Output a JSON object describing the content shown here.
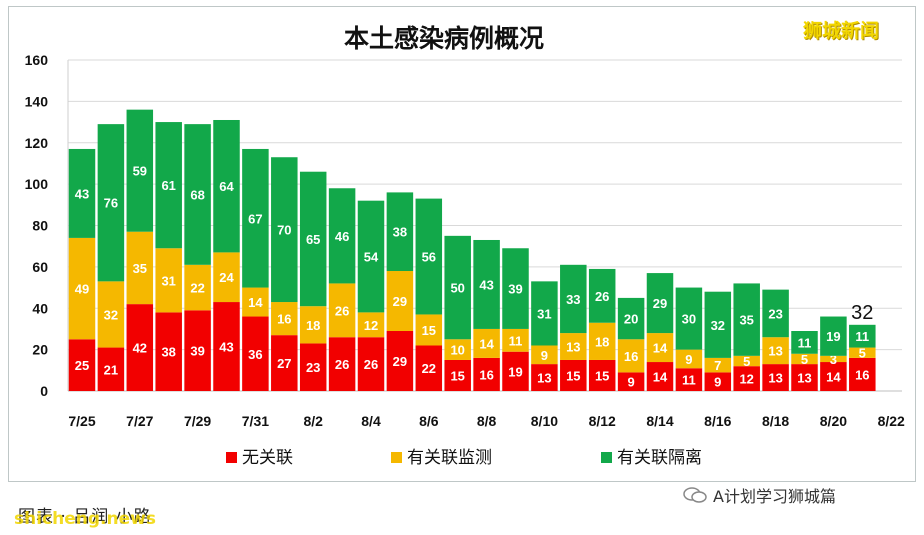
{
  "watermark": "狮城新闻",
  "footer": {
    "credit": "图表 · 吕润 小路",
    "source": "shicheng.news",
    "wechat": "A计划学习狮城篇"
  },
  "colors": {
    "red": "#f20000",
    "yellow": "#f5b800",
    "green": "#12a84a",
    "grid": "#d9d9d9"
  },
  "chart_data": {
    "type": "bar",
    "stacked": true,
    "title": "本土感染病例概况",
    "ylim": [
      0,
      160
    ],
    "yticks": [
      0,
      20,
      40,
      60,
      80,
      100,
      120,
      140,
      160
    ],
    "grid": true,
    "legend_position": "bottom",
    "categories": [
      "7/25",
      "7/26",
      "7/27",
      "7/28",
      "7/29",
      "7/30",
      "7/31",
      "8/1",
      "8/2",
      "8/3",
      "8/4",
      "8/5",
      "8/6",
      "8/7",
      "8/8",
      "8/9",
      "8/10",
      "8/11",
      "8/12",
      "8/13",
      "8/14",
      "8/15",
      "8/16",
      "8/17",
      "8/18",
      "8/19",
      "8/20",
      "8/21"
    ],
    "xtick_labels": [
      "7/25",
      "7/27",
      "7/29",
      "7/31",
      "8/2",
      "8/4",
      "8/6",
      "8/8",
      "8/10",
      "8/12",
      "8/14",
      "8/16",
      "8/18",
      "8/20",
      "8/22"
    ],
    "series": [
      {
        "name": "无关联",
        "color": "#f20000",
        "values": [
          25,
          21,
          42,
          38,
          39,
          43,
          36,
          27,
          23,
          26,
          26,
          29,
          22,
          15,
          16,
          19,
          13,
          15,
          15,
          9,
          14,
          11,
          9,
          12,
          13,
          13,
          14,
          16
        ]
      },
      {
        "name": "有关联监测",
        "color": "#f5b800",
        "values": [
          49,
          32,
          35,
          31,
          22,
          24,
          14,
          16,
          18,
          26,
          12,
          29,
          15,
          10,
          14,
          11,
          9,
          13,
          18,
          16,
          14,
          9,
          7,
          5,
          13,
          5,
          3,
          5
        ]
      },
      {
        "name": "有关联隔离",
        "color": "#12a84a",
        "values": [
          43,
          76,
          59,
          61,
          68,
          64,
          67,
          70,
          65,
          46,
          54,
          38,
          56,
          50,
          43,
          39,
          31,
          33,
          26,
          20,
          29,
          30,
          32,
          35,
          23,
          11,
          19,
          11
        ]
      }
    ],
    "annotations": [
      {
        "category": "8/21",
        "text": "32"
      }
    ]
  }
}
